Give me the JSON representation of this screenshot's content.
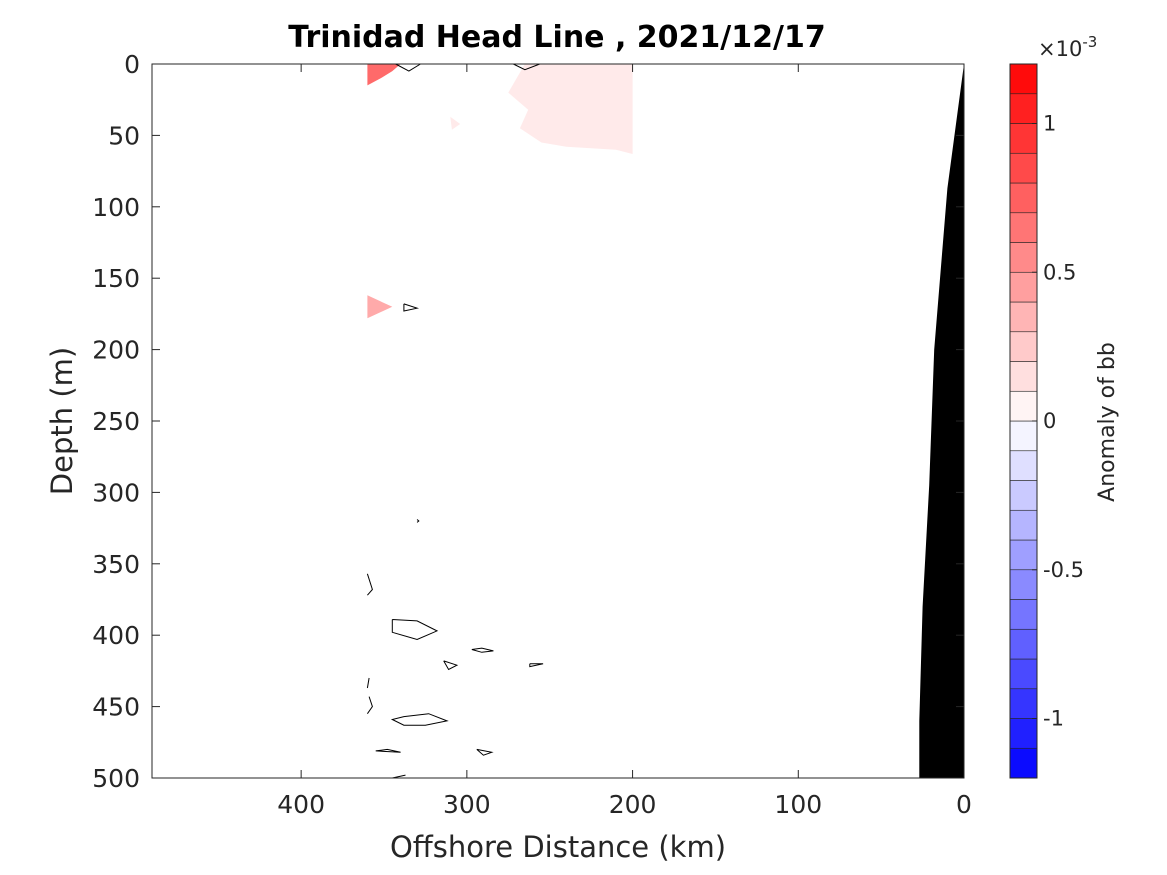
{
  "chart_data": {
    "type": "heatmap",
    "title": "Trinidad Head Line , 2021/12/17",
    "xlabel": "Offshore Distance (km)",
    "ylabel": "Depth (m)",
    "xlim": [
      490,
      0
    ],
    "ylim": [
      0,
      500
    ],
    "x_reversed": true,
    "y_reversed": true,
    "xticks": [
      400,
      300,
      200,
      100,
      0
    ],
    "yticks": [
      0,
      50,
      100,
      150,
      200,
      250,
      300,
      350,
      400,
      450,
      500
    ],
    "grid": false,
    "colorbar": {
      "label": "Anomaly of bb",
      "multiplier_label": "×10",
      "multiplier_exponent": "-3",
      "range": [
        -1.2,
        1.2
      ],
      "levels": 24,
      "ticks": [
        {
          "value": 1,
          "label": "1"
        },
        {
          "value": 0.5,
          "label": "0.5"
        },
        {
          "value": 0,
          "label": "0"
        },
        {
          "value": -0.5,
          "label": "-0.5"
        },
        {
          "value": -1,
          "label": "-1"
        }
      ],
      "neg_color": "#0000ff",
      "pos_color": "#ff0000"
    },
    "features": [
      {
        "name": "positive-anomaly-surface-offshore",
        "value": 0.7,
        "polygon": [
          [
            360,
            0
          ],
          [
            340,
            0
          ],
          [
            345,
            5
          ],
          [
            352,
            10
          ],
          [
            360,
            15
          ]
        ]
      },
      {
        "name": "positive-anomaly-patch-mid",
        "value": 0.1,
        "polygon": [
          [
            265,
            0
          ],
          [
            200,
            0
          ],
          [
            200,
            63
          ],
          [
            210,
            60
          ],
          [
            240,
            58
          ],
          [
            255,
            55
          ],
          [
            268,
            45
          ],
          [
            263,
            32
          ],
          [
            275,
            20
          ]
        ]
      },
      {
        "name": "positive-anomaly-small",
        "value": 0.1,
        "polygon": [
          [
            310,
            37
          ],
          [
            304,
            42
          ],
          [
            309,
            46
          ]
        ]
      },
      {
        "name": "positive-anomaly-subsurface",
        "value": 0.4,
        "polygon": [
          [
            360,
            162
          ],
          [
            345,
            170
          ],
          [
            360,
            178
          ]
        ]
      },
      {
        "name": "seafloor-bathymetry",
        "value": null,
        "polygon": [
          [
            0,
            0
          ],
          [
            10,
            87
          ],
          [
            18,
            200
          ],
          [
            21,
            295
          ],
          [
            25,
            380
          ],
          [
            27,
            460
          ],
          [
            27,
            500
          ],
          [
            0,
            500
          ]
        ]
      }
    ],
    "contours": [
      [
        [
          343,
          0
        ],
        [
          335,
          5
        ],
        [
          328,
          0
        ]
      ],
      [
        [
          272,
          0
        ],
        [
          265,
          4
        ],
        [
          256,
          0
        ]
      ],
      [
        [
          338,
          168
        ],
        [
          330,
          171
        ],
        [
          338,
          173
        ],
        [
          338,
          168
        ]
      ],
      [
        [
          330,
          319
        ],
        [
          329,
          320
        ],
        [
          330,
          321
        ]
      ],
      [
        [
          360,
          357
        ],
        [
          357,
          368
        ],
        [
          360,
          372
        ]
      ],
      [
        [
          345,
          389
        ],
        [
          330,
          390
        ],
        [
          318,
          397
        ],
        [
          330,
          403
        ],
        [
          345,
          398
        ],
        [
          345,
          389
        ]
      ],
      [
        [
          297,
          410
        ],
        [
          291,
          409
        ],
        [
          284,
          411
        ],
        [
          291,
          412
        ],
        [
          297,
          410
        ]
      ],
      [
        [
          314,
          418
        ],
        [
          306,
          421
        ],
        [
          311,
          424
        ],
        [
          314,
          418
        ]
      ],
      [
        [
          262,
          420
        ],
        [
          254,
          420
        ],
        [
          262,
          422
        ],
        [
          262,
          420
        ]
      ],
      [
        [
          359,
          430
        ],
        [
          360,
          437
        ]
      ],
      [
        [
          359,
          443
        ],
        [
          357,
          450
        ],
        [
          360,
          455
        ]
      ],
      [
        [
          338,
          457
        ],
        [
          323,
          455
        ],
        [
          312,
          460
        ],
        [
          325,
          463
        ],
        [
          338,
          463
        ],
        [
          345,
          459
        ],
        [
          338,
          457
        ]
      ],
      [
        [
          355,
          481
        ],
        [
          348,
          480
        ],
        [
          340,
          482
        ],
        [
          355,
          481
        ]
      ],
      [
        [
          294,
          480
        ],
        [
          290,
          484
        ],
        [
          285,
          482
        ],
        [
          294,
          480
        ]
      ],
      [
        [
          345,
          500
        ],
        [
          337,
          498
        ]
      ]
    ]
  }
}
